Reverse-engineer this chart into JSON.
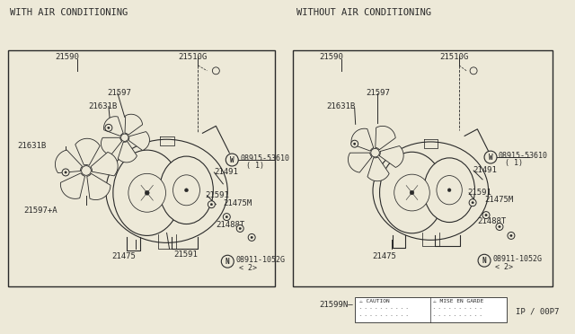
{
  "bg_color": "#ede9d8",
  "line_color": "#2a2a2a",
  "title_left": "WITH AIR CONDITIONING",
  "title_right": "WITHOUT AIR CONDITIONING",
  "footer_label": "21599N",
  "page_ref": "IP / 00P7",
  "font_size": 6.5
}
